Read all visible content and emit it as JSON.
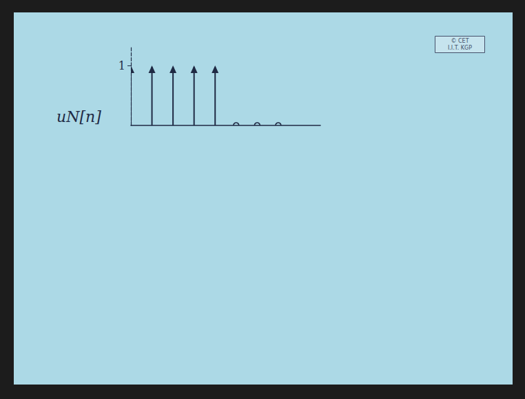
{
  "chart_data": {
    "type": "stem",
    "ylabel": "uN[n]",
    "x": [
      0,
      1,
      2,
      3,
      4,
      5,
      6,
      7
    ],
    "values": [
      1,
      1,
      1,
      1,
      1,
      0,
      0,
      0
    ],
    "xlim": [
      0,
      9
    ],
    "xticks": [],
    "ylim": [
      0,
      1.3
    ],
    "yticks": [
      1
    ],
    "tick_labels": "y",
    "marker": "arrow",
    "color": "#1f2a44",
    "grid": false,
    "annotations": [
      "© CET",
      "I.I.T. KGP"
    ]
  }
}
